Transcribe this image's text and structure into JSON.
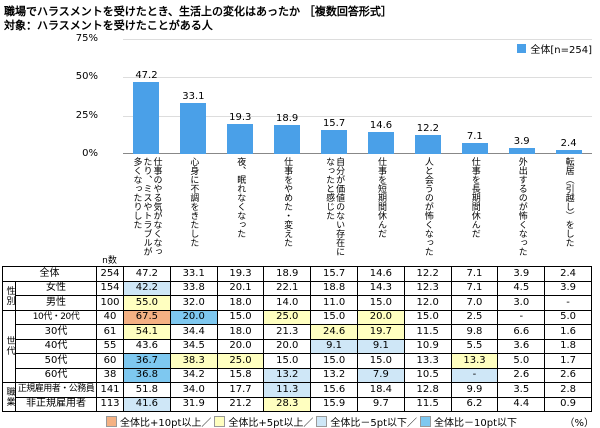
{
  "header": {
    "title": "職場でハラスメントを受けたとき、生活上の変化はあったか ［複数回答形式］",
    "subtitle": "対象：ハラスメントを受けたことがある人"
  },
  "chart": {
    "legend_label": "全体[n=254]",
    "y_ticks": [
      "75%",
      "50%",
      "25%",
      "0%"
    ],
    "n_header": "n数",
    "percent_note": "（%）"
  },
  "colors": {
    "bar": "#4aa0e8",
    "plus10": "#f4b183",
    "plus5": "#ffffc0",
    "minus5": "#cfe7f7",
    "minus10": "#7ec8f0"
  },
  "chart_data": {
    "type": "bar",
    "title": "職場でハラスメントを受けたとき、生活上の変化はあったか",
    "series_name": "全体[n=254]",
    "categories": [
      "仕事のやる気がなくなったり、ミスやトラブルが多くなったりした",
      "心身に不調をきたした",
      "夜、眠れなくなった",
      "仕事をやめた・変えた",
      "自分が価値のない存在になったと感じた",
      "仕事を短期間休んだ",
      "人と会うのが怖くなった",
      "仕事を長期間休んだ",
      "外出するのが怖くなった",
      "転居（引越し）をした"
    ],
    "values": [
      47.2,
      33.1,
      19.3,
      18.9,
      15.7,
      14.6,
      12.2,
      7.1,
      3.9,
      2.4
    ],
    "ylim": [
      0,
      75
    ],
    "ylabel": "%",
    "grid": true,
    "legend_position": "top-right"
  },
  "table": {
    "rows": [
      {
        "group": "",
        "label": "全体",
        "n": 254,
        "values": [
          47.2,
          33.1,
          19.3,
          18.9,
          15.7,
          14.6,
          12.2,
          7.1,
          3.9,
          2.4
        ]
      },
      {
        "group": "性別",
        "label": "女性",
        "n": 154,
        "values": [
          42.2,
          33.8,
          20.1,
          22.1,
          18.8,
          14.3,
          12.3,
          7.1,
          4.5,
          3.9
        ]
      },
      {
        "group": "性別",
        "label": "男性",
        "n": 100,
        "values": [
          55.0,
          32.0,
          18.0,
          14.0,
          11.0,
          15.0,
          12.0,
          7.0,
          3.0,
          "-"
        ]
      },
      {
        "group": "世代",
        "label": "10代・20代",
        "n": 40,
        "values": [
          67.5,
          20.0,
          15.0,
          25.0,
          15.0,
          20.0,
          15.0,
          2.5,
          "-",
          5.0
        ]
      },
      {
        "group": "世代",
        "label": "30代",
        "n": 61,
        "values": [
          54.1,
          34.4,
          18.0,
          21.3,
          24.6,
          19.7,
          11.5,
          9.8,
          6.6,
          1.6
        ]
      },
      {
        "group": "世代",
        "label": "40代",
        "n": 55,
        "values": [
          43.6,
          34.5,
          20.0,
          20.0,
          9.1,
          9.1,
          10.9,
          5.5,
          3.6,
          1.8
        ]
      },
      {
        "group": "世代",
        "label": "50代",
        "n": 60,
        "values": [
          36.7,
          38.3,
          25.0,
          15.0,
          15.0,
          15.0,
          13.3,
          13.3,
          5.0,
          1.7
        ]
      },
      {
        "group": "世代",
        "label": "60代",
        "n": 38,
        "values": [
          36.8,
          34.2,
          15.8,
          13.2,
          13.2,
          7.9,
          10.5,
          "-",
          2.6,
          2.6
        ]
      },
      {
        "group": "職業",
        "label": "正規雇用者・公務員",
        "n": 141,
        "values": [
          51.8,
          34.0,
          17.7,
          11.3,
          15.6,
          18.4,
          12.8,
          9.9,
          3.5,
          2.8
        ]
      },
      {
        "group": "職業",
        "label": "非正規雇用者",
        "n": 113,
        "values": [
          41.6,
          31.9,
          21.2,
          28.3,
          15.9,
          9.7,
          11.5,
          6.2,
          4.4,
          0.9
        ]
      }
    ]
  },
  "bottom_legend": [
    {
      "label": "全体比+10pt以上／",
      "color_key": "plus10"
    },
    {
      "label": "全体比+5pt以上／",
      "color_key": "plus5"
    },
    {
      "label": "全体比－5pt以下／",
      "color_key": "minus5"
    },
    {
      "label": "全体比－10pt以下",
      "color_key": "minus10"
    }
  ]
}
